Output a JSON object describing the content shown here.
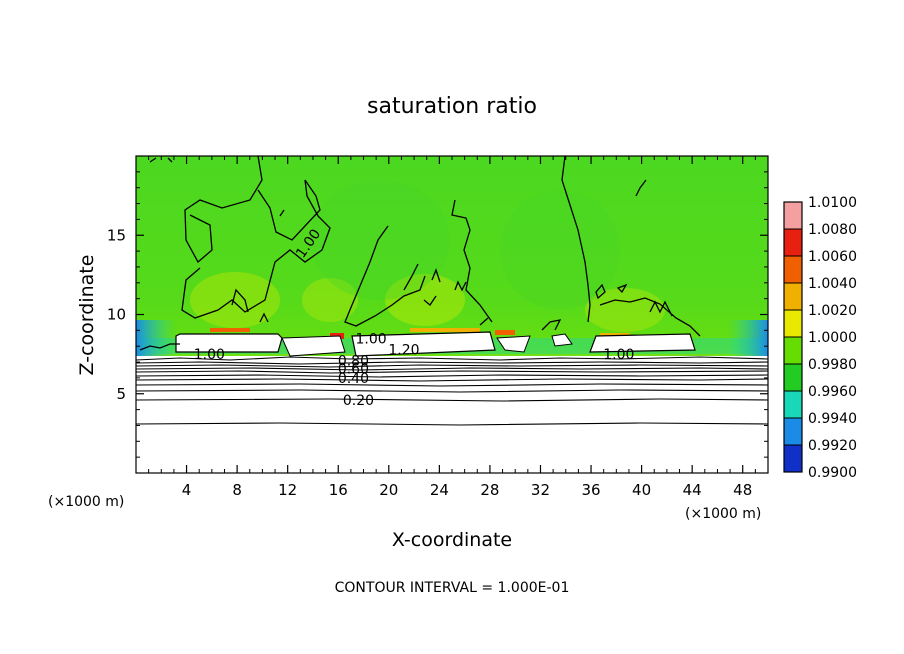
{
  "chart_data": {
    "type": "heatmap",
    "title": "saturation ratio",
    "xlabel": "X-coordinate",
    "ylabel": "Z-coordinate",
    "x_unit_left": "(×1000 m)",
    "x_unit_right": "(×1000 m)",
    "xlim": [
      0,
      50
    ],
    "ylim": [
      0,
      20
    ],
    "xticks": [
      4,
      8,
      12,
      16,
      20,
      24,
      28,
      32,
      36,
      40,
      44,
      48
    ],
    "yticks": [
      5,
      10,
      15
    ],
    "colorbar": {
      "levels": [
        "1.0100",
        "1.0080",
        "1.0060",
        "1.0040",
        "1.0020",
        "1.0000",
        "0.9980",
        "0.9960",
        "0.9940",
        "0.9920",
        "0.9900"
      ],
      "colors": [
        "#f4a0a0",
        "#e82010",
        "#f06000",
        "#f0b000",
        "#e8e800",
        "#66dd00",
        "#22cc22",
        "#18d8b8",
        "#1a8ce8",
        "#1030c8",
        "#5a10a8"
      ]
    },
    "contour_labels": [
      {
        "text": "1.00",
        "x": 5.8,
        "z": 7.5
      },
      {
        "text": "1.00",
        "x": 13.6,
        "z": 14.5
      },
      {
        "text": "1.00",
        "x": 18.6,
        "z": 8.5
      },
      {
        "text": "1.20",
        "x": 21.2,
        "z": 7.8
      },
      {
        "text": "0.80",
        "x": 17.2,
        "z": 7.1
      },
      {
        "text": "0.60",
        "x": 17.2,
        "z": 6.6
      },
      {
        "text": "0.40",
        "x": 17.2,
        "z": 6.0
      },
      {
        "text": "0.20",
        "x": 17.6,
        "z": 4.6
      },
      {
        "text": "1.00",
        "x": 38.2,
        "z": 7.5
      }
    ],
    "contour_interval_text": "CONTOUR INTERVAL = 1.000E-01",
    "grid": false
  }
}
